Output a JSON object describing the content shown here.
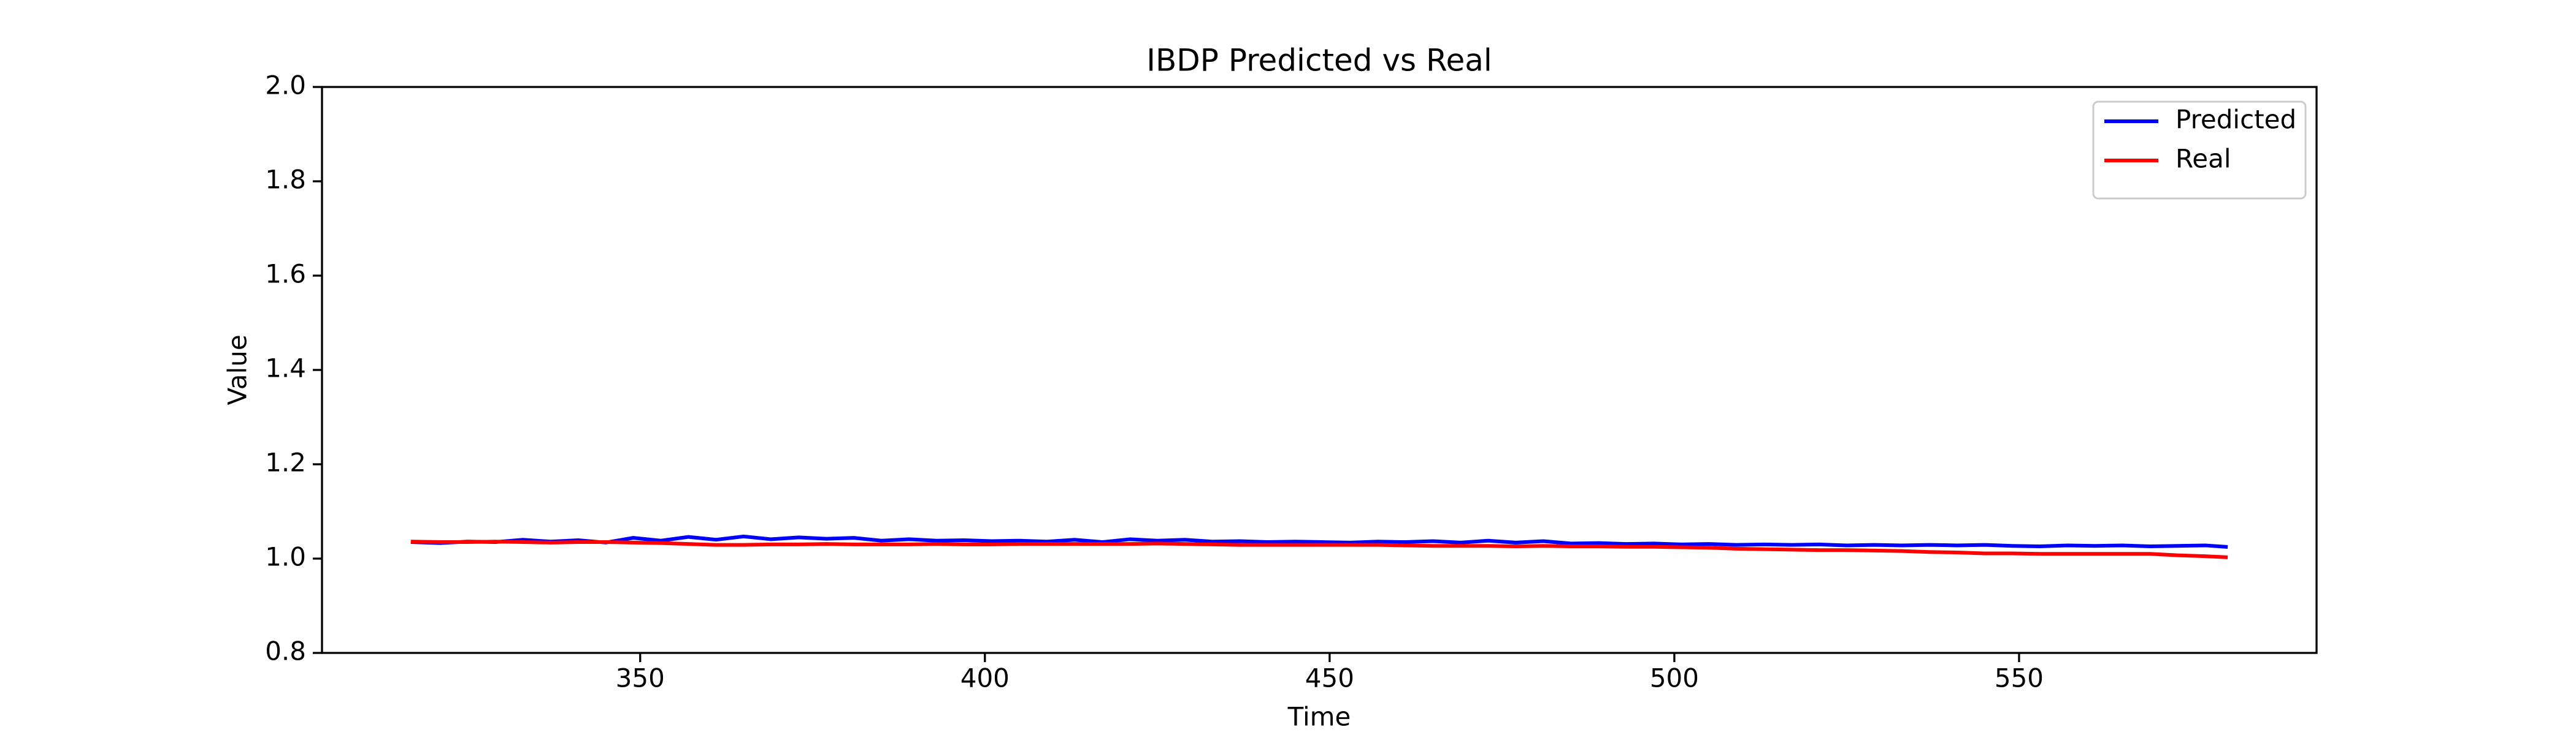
{
  "chart_data": {
    "type": "line",
    "title": "IBDP Predicted vs Real",
    "x_label": "Time",
    "y_label": "Value",
    "x": [
      317,
      321,
      325,
      329,
      333,
      337,
      341,
      345,
      349,
      353,
      357,
      361,
      365,
      369,
      373,
      377,
      381,
      385,
      389,
      393,
      397,
      401,
      405,
      409,
      413,
      417,
      421,
      425,
      429,
      433,
      437,
      441,
      445,
      449,
      453,
      457,
      461,
      465,
      469,
      473,
      477,
      481,
      485,
      489,
      493,
      497,
      501,
      505,
      509,
      513,
      517,
      521,
      525,
      529,
      533,
      537,
      541,
      545,
      549,
      553,
      557,
      561,
      565,
      569,
      573,
      577,
      580
    ],
    "series": [
      {
        "name": "Predicted",
        "color": "#0000ff",
        "values": [
          1.035,
          1.033,
          1.036,
          1.035,
          1.04,
          1.036,
          1.039,
          1.034,
          1.044,
          1.038,
          1.046,
          1.04,
          1.047,
          1.041,
          1.045,
          1.042,
          1.044,
          1.038,
          1.041,
          1.038,
          1.039,
          1.037,
          1.038,
          1.036,
          1.04,
          1.035,
          1.041,
          1.038,
          1.04,
          1.036,
          1.037,
          1.035,
          1.036,
          1.035,
          1.034,
          1.036,
          1.035,
          1.037,
          1.034,
          1.038,
          1.034,
          1.037,
          1.032,
          1.033,
          1.031,
          1.032,
          1.03,
          1.031,
          1.029,
          1.03,
          1.029,
          1.03,
          1.028,
          1.029,
          1.028,
          1.029,
          1.028,
          1.029,
          1.027,
          1.026,
          1.028,
          1.027,
          1.028,
          1.026,
          1.027,
          1.028,
          1.025
        ]
      },
      {
        "name": "Real",
        "color": "#ff0000",
        "values": [
          1.036,
          1.035,
          1.035,
          1.036,
          1.035,
          1.034,
          1.035,
          1.035,
          1.034,
          1.033,
          1.031,
          1.029,
          1.029,
          1.03,
          1.03,
          1.031,
          1.03,
          1.03,
          1.03,
          1.031,
          1.03,
          1.03,
          1.031,
          1.031,
          1.031,
          1.031,
          1.031,
          1.032,
          1.031,
          1.03,
          1.029,
          1.029,
          1.029,
          1.029,
          1.029,
          1.029,
          1.028,
          1.027,
          1.027,
          1.027,
          1.026,
          1.027,
          1.026,
          1.026,
          1.025,
          1.025,
          1.024,
          1.023,
          1.021,
          1.02,
          1.019,
          1.018,
          1.018,
          1.017,
          1.016,
          1.014,
          1.013,
          1.011,
          1.011,
          1.01,
          1.01,
          1.01,
          1.01,
          1.01,
          1.007,
          1.005,
          1.003
        ]
      }
    ],
    "xlim": [
      303.85,
      593.15
    ],
    "xticks": [
      350,
      400,
      450,
      500,
      550
    ],
    "ylim": [
      0.8,
      2.0
    ],
    "yticks": [
      {
        "value": 0.8,
        "label": "0.8"
      },
      {
        "value": 1.0,
        "label": "1.0"
      },
      {
        "value": 1.2,
        "label": "1.2"
      },
      {
        "value": 1.4,
        "label": "1.4"
      },
      {
        "value": 1.6,
        "label": "1.6"
      },
      {
        "value": 1.8,
        "label": "1.8"
      },
      {
        "value": 2.0,
        "label": "2.0"
      }
    ],
    "legend": "upper right",
    "grid": false
  }
}
